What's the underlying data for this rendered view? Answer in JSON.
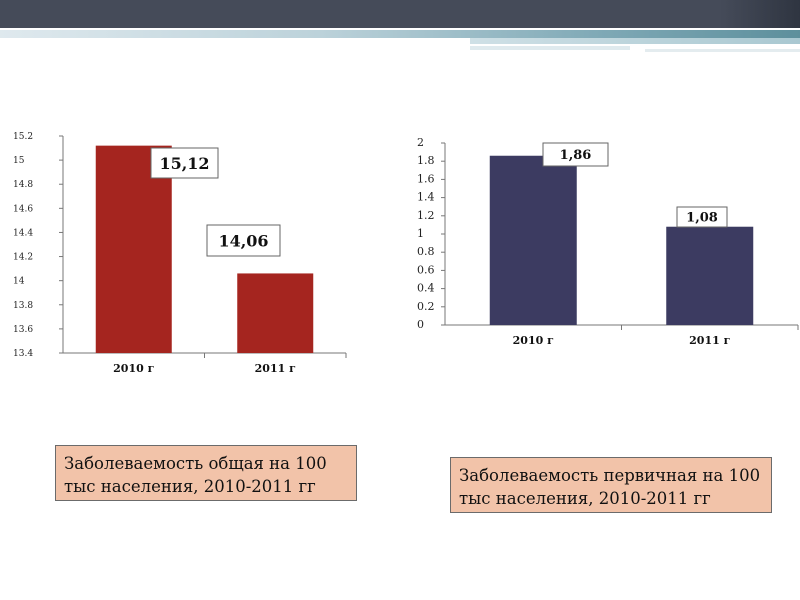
{
  "colors": {
    "left_bar": "#a5251f",
    "right_bar": "#3c3b61",
    "caption_bg": "#f2c3a9",
    "header": "#454b59"
  },
  "chart_data": [
    {
      "type": "bar",
      "categories": [
        "2010 г",
        "2011 г"
      ],
      "values": [
        15.12,
        14.06
      ],
      "value_labels": [
        "15,12",
        "14,06"
      ],
      "yticks": [
        "13.4",
        "13.6",
        "13.8",
        "14",
        "14.2",
        "14.4",
        "14.6",
        "14.8",
        "15",
        "15.2"
      ],
      "ylim": [
        13.4,
        15.2
      ],
      "caption": "Заболеваемость общая на 100 тыс населения, 2010-2011 гг"
    },
    {
      "type": "bar",
      "categories": [
        "2010 г",
        "2011 г"
      ],
      "values": [
        1.86,
        1.08
      ],
      "value_labels": [
        "1,86",
        "1,08"
      ],
      "yticks": [
        "0",
        "0.2",
        "0.4",
        "0.6",
        "0.8",
        "1",
        "1.2",
        "1.4",
        "1.6",
        "1.8",
        "2"
      ],
      "ylim": [
        0,
        2
      ],
      "caption": "Заболеваемость  первичная на 100 тыс населения, 2010-2011 гг"
    }
  ]
}
